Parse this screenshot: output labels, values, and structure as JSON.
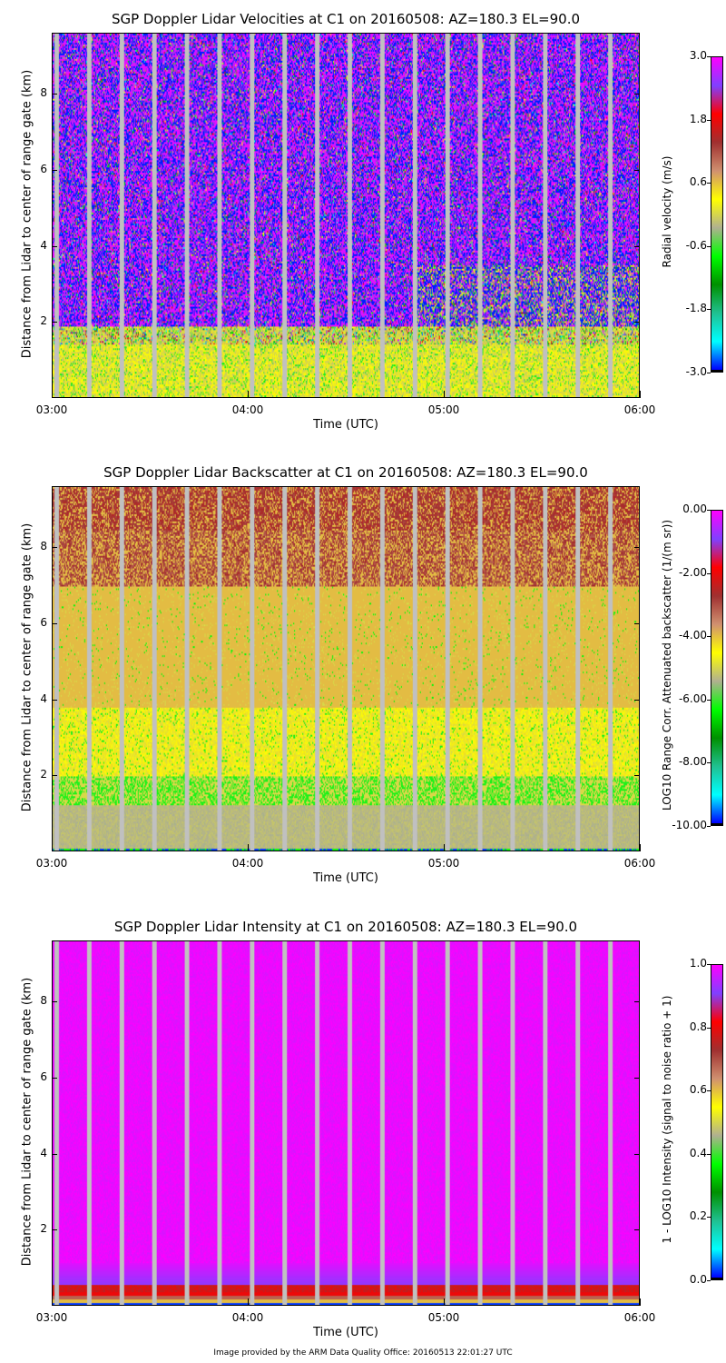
{
  "chart_data": [
    {
      "type": "heatmap",
      "title": "SGP Doppler Lidar Velocities at C1 on 20160508: AZ=180.3 EL=90.0",
      "xlabel": "Time (UTC)",
      "ylabel": "Distance from Lidar to center of range gate (km)",
      "x_ticks": [
        "03:00",
        "04:00",
        "05:00",
        "06:00"
      ],
      "xlim": [
        "03:00",
        "06:00"
      ],
      "y_ticks": [
        "2",
        "4",
        "6",
        "8"
      ],
      "ylim": [
        0,
        9.6
      ],
      "colorbar": {
        "label": "Radial velocity (m/s)",
        "ticks": [
          "3.0",
          "1.8",
          "0.6",
          "-0.6",
          "-1.8",
          "-3.0"
        ],
        "range": [
          -3.0,
          3.0
        ]
      }
    },
    {
      "type": "heatmap",
      "title": "SGP Doppler Lidar Backscatter at C1 on 20160508: AZ=180.3 EL=90.0",
      "xlabel": "Time (UTC)",
      "ylabel": "Distance from Lidar to center of range gate (km)",
      "x_ticks": [
        "03:00",
        "04:00",
        "05:00",
        "06:00"
      ],
      "xlim": [
        "03:00",
        "06:00"
      ],
      "y_ticks": [
        "2",
        "4",
        "6",
        "8"
      ],
      "ylim": [
        0,
        9.6
      ],
      "colorbar": {
        "label": "LOG10 Range Corr. Attenuated backscatter (1/(m sr))",
        "ticks": [
          "0.00",
          "-2.00",
          "-4.00",
          "-6.00",
          "-8.00",
          "-10.00"
        ],
        "range": [
          -10.0,
          0.0
        ]
      }
    },
    {
      "type": "heatmap",
      "title": "SGP Doppler Lidar Intensity at C1 on 20160508: AZ=180.3 EL=90.0",
      "xlabel": "Time (UTC)",
      "ylabel": "Distance from Lidar to center of range gate (km)",
      "x_ticks": [
        "03:00",
        "04:00",
        "05:00",
        "06:00"
      ],
      "xlim": [
        "03:00",
        "06:00"
      ],
      "y_ticks": [
        "2",
        "4",
        "6",
        "8"
      ],
      "ylim": [
        0,
        9.6
      ],
      "colorbar": {
        "label": "1 - LOG10 Intensity (signal to noise ratio + 1)",
        "ticks": [
          "1.0",
          "0.8",
          "0.6",
          "0.4",
          "0.2",
          "0.0"
        ],
        "range": [
          0.0,
          1.0
        ]
      }
    }
  ],
  "data_gaps_utc": [
    "03:01",
    "03:11",
    "03:21",
    "03:31",
    "03:41",
    "03:51",
    "04:01",
    "04:11",
    "04:21",
    "04:31",
    "04:41",
    "04:51",
    "05:01",
    "05:11",
    "05:21",
    "05:31",
    "05:41",
    "05:51"
  ],
  "colors": {
    "gap": "#c0c0c0",
    "colormap": [
      "#0000ff",
      "#00ffff",
      "#20c090",
      "#009000",
      "#00ff00",
      "#b0b090",
      "#ffff00",
      "#d09070",
      "#a03030",
      "#ff0000",
      "#8040ff",
      "#ff00ff"
    ]
  },
  "footer": "Image provided by the ARM Data Quality Office: 20160513 22:01:27 UTC"
}
